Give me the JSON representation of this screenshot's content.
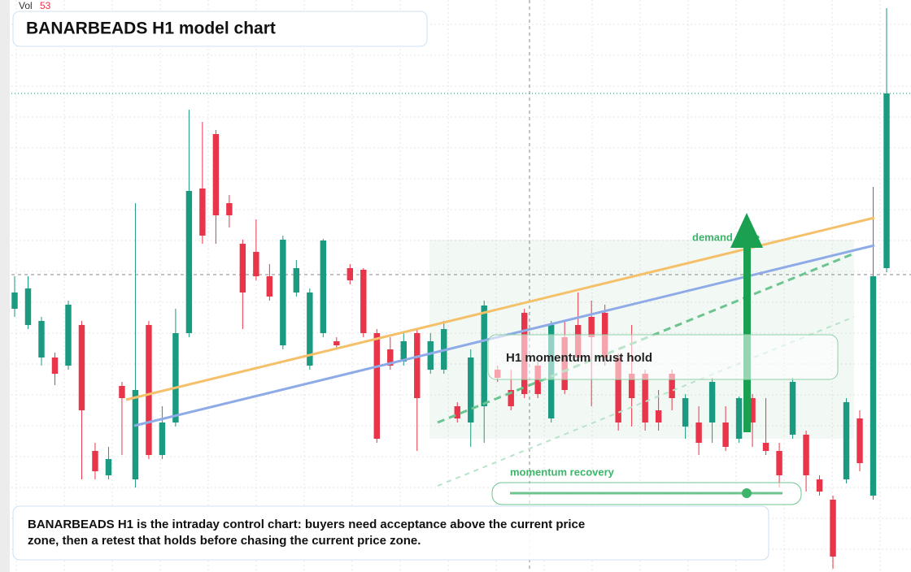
{
  "chart_data": {
    "type": "candlestick",
    "title": "BANARBEADS H1 model chart",
    "volume_label": "Vol",
    "volume_value": 53,
    "ylim": [
      0,
      704
    ],
    "up_color": "#1a9a80",
    "down_color": "#e8354a",
    "annotations": {
      "zone": "demand zone",
      "callout": "H1 momentum must hold",
      "slider": "momentum recovery",
      "note": "BANARBEADS H1 is the intraday control chart: buyers need acceptance above the current price zone, then a retest that holds before chasing the current price zone."
    },
    "open": [
      324,
      304,
      264,
      264,
      254,
      304,
      149,
      119,
      229,
      114,
      304,
      144,
      184,
      294,
      472,
      539,
      454,
      404,
      394,
      364,
      279,
      344,
      254,
      294,
      284,
      374,
      372,
      294,
      274,
      259,
      294,
      249,
      249,
      204,
      184,
      204,
      249,
      224,
      319,
      254,
      189,
      289,
      304,
      314,
      319,
      264,
      244,
      244,
      199,
      244,
      179,
      184,
      184,
      184,
      164,
      214,
      159,
      149,
      169,
      169,
      114,
      89,
      114,
      189,
      94,
      374
    ],
    "high": [
      364,
      364,
      314,
      270,
      334,
      309,
      159,
      154,
      234,
      454,
      309,
      204,
      324,
      569,
      554,
      544,
      464,
      409,
      434,
      379,
      414,
      384,
      349,
      410,
      289,
      379,
      374,
      299,
      289,
      294,
      299,
      294,
      309,
      209,
      274,
      334,
      254,
      249,
      324,
      259,
      309,
      309,
      344,
      334,
      329,
      269,
      304,
      249,
      224,
      249,
      219,
      204,
      239,
      204,
      216,
      219,
      214,
      159,
      239,
      174,
      119,
      94,
      214,
      199,
      474,
      694
    ],
    "low": [
      314,
      299,
      254,
      230,
      249,
      114,
      114,
      114,
      144,
      104,
      139,
      139,
      179,
      289,
      404,
      404,
      424,
      299,
      359,
      334,
      274,
      339,
      249,
      289,
      274,
      354,
      289,
      159,
      249,
      254,
      149,
      244,
      244,
      184,
      154,
      159,
      234,
      199,
      214,
      214,
      184,
      219,
      259,
      204,
      254,
      174,
      179,
      174,
      174,
      199,
      164,
      144,
      159,
      149,
      159,
      154,
      144,
      104,
      164,
      99,
      94,
      4,
      109,
      124,
      89,
      369
    ],
    "close": [
      344,
      349,
      309,
      244,
      329,
      199,
      124,
      139,
      214,
      224,
      144,
      184,
      294,
      469,
      414,
      439,
      439,
      344,
      364,
      339,
      409,
      374,
      344,
      408,
      279,
      359,
      294,
      164,
      254,
      284,
      214,
      284,
      299,
      189,
      264,
      328,
      239,
      204,
      219,
      219,
      304,
      224,
      264,
      289,
      264,
      184,
      214,
      184,
      184,
      214,
      214,
      159,
      234,
      154,
      214,
      184,
      149,
      119,
      234,
      119,
      99,
      19,
      209,
      134,
      364,
      589
    ]
  }
}
